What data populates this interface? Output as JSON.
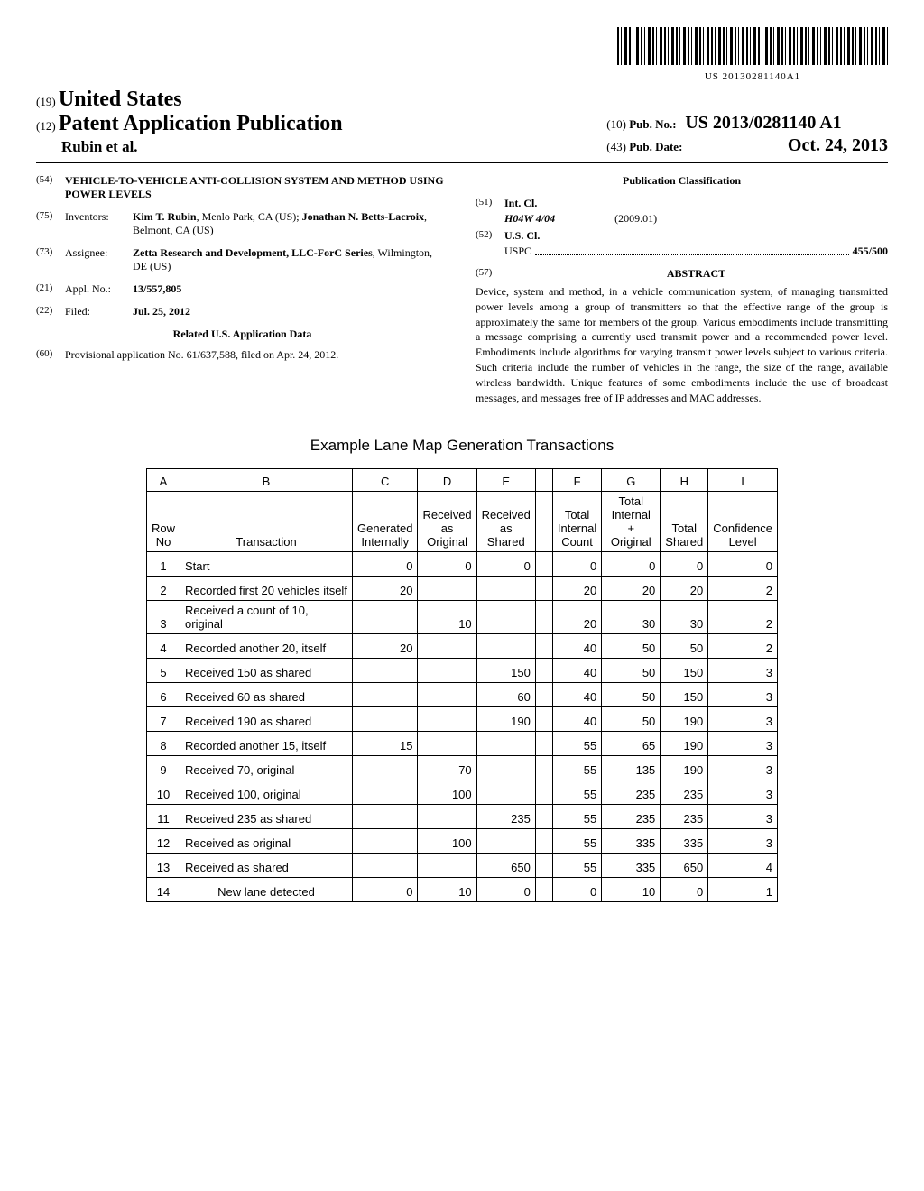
{
  "barcode_text": "US 20130281140A1",
  "header": {
    "code19": "(19)",
    "country": "United States",
    "code12": "(12)",
    "pub_type": "Patent Application Publication",
    "authors": "Rubin et al.",
    "code10": "(10)",
    "pub_no_label": "Pub. No.:",
    "pub_no": "US 2013/0281140 A1",
    "code43": "(43)",
    "pub_date_label": "Pub. Date:",
    "pub_date": "Oct. 24, 2013"
  },
  "left": {
    "code54": "(54)",
    "title": "VEHICLE-TO-VEHICLE ANTI-COLLISION SYSTEM AND METHOD USING POWER LEVELS",
    "code75": "(75)",
    "inventors_label": "Inventors:",
    "inventors": "Kim T. Rubin, Menlo Park, CA (US); Jonathan N. Betts-Lacroix, Belmont, CA (US)",
    "inv1_name": "Kim T. Rubin",
    "inv1_loc": ", Menlo Park, CA (US); ",
    "inv2_name": "Jonathan N. Betts-Lacroix",
    "inv2_loc": ", Belmont, CA (US)",
    "code73": "(73)",
    "assignee_label": "Assignee:",
    "assignee_name": "Zetta Research and Development, LLC-ForC Series",
    "assignee_loc": ", Wilmington, DE (US)",
    "code21": "(21)",
    "appl_label": "Appl. No.:",
    "appl_no": "13/557,805",
    "code22": "(22)",
    "filed_label": "Filed:",
    "filed_date": "Jul. 25, 2012",
    "related_heading": "Related U.S. Application Data",
    "code60": "(60)",
    "provisional": "Provisional application No. 61/637,588, filed on Apr. 24, 2012."
  },
  "right": {
    "classification_heading": "Publication Classification",
    "code51": "(51)",
    "intcl_label": "Int. Cl.",
    "intcl_code": "H04W 4/04",
    "intcl_date": "(2009.01)",
    "code52": "(52)",
    "uscl_label": "U.S. Cl.",
    "uspc_label": "USPC",
    "uspc_code": "455/500",
    "code57": "(57)",
    "abstract_label": "ABSTRACT",
    "abstract": "Device, system and method, in a vehicle communication system, of managing transmitted power levels among a group of transmitters so that the effective range of the group is approximately the same for members of the group. Various embodiments include transmitting a message comprising a currently used transmit power and a recommended power level. Embodiments include algorithms for varying transmit power levels subject to various criteria. Such criteria include the number of vehicles in the range, the size of the range, available wireless bandwidth. Unique features of some embodiments include the use of broadcast messages, and messages free of IP addresses and MAC addresses."
  },
  "table": {
    "title": "Example Lane Map Generation Transactions",
    "col_letters": [
      "A",
      "B",
      "C",
      "D",
      "E",
      "F",
      "G",
      "H",
      "I"
    ],
    "headers": [
      "Row No",
      "Transaction",
      "Generated Internally",
      "Received as Original",
      "Received as Shared",
      "Total Internal Count",
      "Total Internal + Original",
      "Total Shared",
      "Confidence Level"
    ],
    "h_A": "Row No",
    "h_B": "Transaction",
    "h_C": "Generated Internally",
    "h_D": "Received as Original",
    "h_E": "Received as Shared",
    "h_F": "Total Internal Count",
    "h_G": "Total Internal + Original",
    "h_H": "Total Shared",
    "h_I": "Confidence Level",
    "rows": [
      {
        "n": "1",
        "t": "Start",
        "c": "0",
        "d": "0",
        "e": "0",
        "f": "0",
        "g": "0",
        "h": "0",
        "i": "0"
      },
      {
        "n": "2",
        "t": "Recorded first 20 vehicles itself",
        "c": "20",
        "d": "",
        "e": "",
        "f": "20",
        "g": "20",
        "h": "20",
        "i": "2"
      },
      {
        "n": "3",
        "t": "Received a count of 10, original",
        "c": "",
        "d": "10",
        "e": "",
        "f": "20",
        "g": "30",
        "h": "30",
        "i": "2"
      },
      {
        "n": "4",
        "t": "Recorded another 20, itself",
        "c": "20",
        "d": "",
        "e": "",
        "f": "40",
        "g": "50",
        "h": "50",
        "i": "2"
      },
      {
        "n": "5",
        "t": "Received 150 as shared",
        "c": "",
        "d": "",
        "e": "150",
        "f": "40",
        "g": "50",
        "h": "150",
        "i": "3"
      },
      {
        "n": "6",
        "t": "Received 60 as shared",
        "c": "",
        "d": "",
        "e": "60",
        "f": "40",
        "g": "50",
        "h": "150",
        "i": "3"
      },
      {
        "n": "7",
        "t": "Received 190 as shared",
        "c": "",
        "d": "",
        "e": "190",
        "f": "40",
        "g": "50",
        "h": "190",
        "i": "3"
      },
      {
        "n": "8",
        "t": "Recorded another 15, itself",
        "c": "15",
        "d": "",
        "e": "",
        "f": "55",
        "g": "65",
        "h": "190",
        "i": "3"
      },
      {
        "n": "9",
        "t": "Received 70, original",
        "c": "",
        "d": "70",
        "e": "",
        "f": "55",
        "g": "135",
        "h": "190",
        "i": "3"
      },
      {
        "n": "10",
        "t": "Received 100, original",
        "c": "",
        "d": "100",
        "e": "",
        "f": "55",
        "g": "235",
        "h": "235",
        "i": "3"
      },
      {
        "n": "11",
        "t": "Received 235 as shared",
        "c": "",
        "d": "",
        "e": "235",
        "f": "55",
        "g": "235",
        "h": "235",
        "i": "3"
      },
      {
        "n": "12",
        "t": "Received as original",
        "c": "",
        "d": "100",
        "e": "",
        "f": "55",
        "g": "335",
        "h": "335",
        "i": "3"
      },
      {
        "n": "13",
        "t": "Received as shared",
        "c": "",
        "d": "",
        "e": "650",
        "f": "55",
        "g": "335",
        "h": "650",
        "i": "4"
      },
      {
        "n": "14",
        "t": "New lane detected",
        "c": "0",
        "d": "10",
        "e": "0",
        "f": "0",
        "g": "10",
        "h": "0",
        "i": "1"
      }
    ]
  }
}
